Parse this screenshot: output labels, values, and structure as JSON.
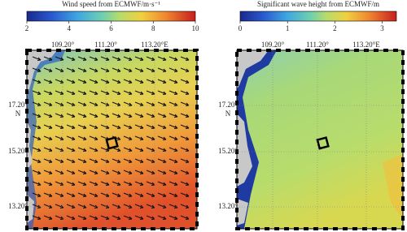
{
  "panels": [
    {
      "title": "Wind speed from ECMWF/m·s⁻¹",
      "colorbar": {
        "lim": [
          2,
          10
        ],
        "ticks": [
          2,
          4,
          6,
          8,
          10
        ]
      },
      "lon_labels": [
        "109.20°",
        "111.20°",
        "113.20°E"
      ],
      "lat_labels": [
        "17.20°",
        "N",
        "15.20°",
        "13.20°"
      ]
    },
    {
      "title": "Significant wave height from ECMWF/m",
      "colorbar": {
        "lim": [
          0,
          3.3
        ],
        "ticks": [
          0,
          1,
          2,
          3
        ]
      },
      "lon_labels": [
        "109.20°",
        "111.20°",
        "113.20°E"
      ],
      "lat_labels": [
        "17.20°",
        "N",
        "15.20°",
        "13.20°"
      ]
    }
  ]
}
